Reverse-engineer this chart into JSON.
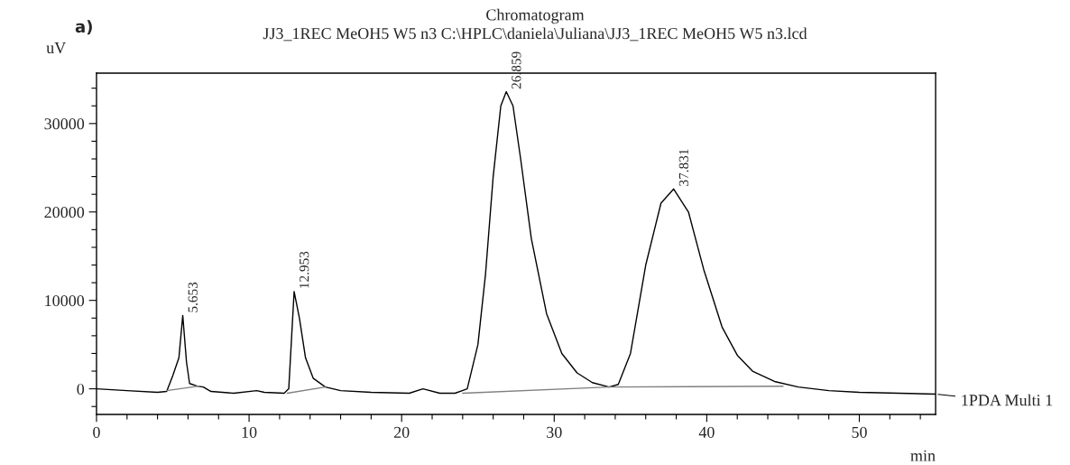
{
  "chart_data": {
    "type": "line",
    "title": "Chromatogram",
    "subtitle": "JJ3_1REC MeOH5 W5 n3 C:\\HPLC\\daniela\\Juliana\\JJ3_1REC MeOH5 W5 n3.lcd",
    "xlabel": "min",
    "ylabel": "uV",
    "xlim": [
      0,
      55
    ],
    "xticks": [
      0,
      10,
      20,
      30,
      40,
      50
    ],
    "ylim": [
      -2900,
      35700
    ],
    "yticks": [
      0,
      10000,
      20000,
      30000
    ],
    "grid": false,
    "legend": "right",
    "marker": "none",
    "line_style": "solid",
    "series": [
      {
        "name": "1PDA Multi 1",
        "color": "#000000",
        "x": [
          0,
          2,
          4,
          4.6,
          5.0,
          5.4,
          5.653,
          5.9,
          6.1,
          6.6,
          7.0,
          7.5,
          9,
          10.5,
          11,
          12.3,
          12.6,
          12.953,
          13.3,
          13.7,
          14.2,
          15,
          16,
          18,
          20.5,
          21.4,
          22.5,
          23.5,
          24.3,
          25,
          25.5,
          26,
          26.5,
          26.859,
          27.3,
          27.8,
          28.5,
          29.5,
          30.5,
          31.5,
          32.5,
          33.6,
          34.2,
          35,
          36,
          37,
          37.831,
          38.8,
          39.8,
          41,
          42,
          43,
          44.5,
          46,
          48,
          50,
          55
        ],
        "values": [
          0,
          -200,
          -400,
          -300,
          1500,
          3500,
          8300,
          3000,
          600,
          300,
          200,
          -300,
          -500,
          -200,
          -400,
          -500,
          0,
          11000,
          8000,
          3500,
          1200,
          200,
          -200,
          -400,
          -500,
          0,
          -500,
          -500,
          0,
          5000,
          13000,
          24000,
          32000,
          33600,
          32000,
          26000,
          17000,
          8500,
          4000,
          1800,
          700,
          200,
          500,
          4000,
          14000,
          21000,
          22600,
          20000,
          13500,
          7000,
          3800,
          2000,
          800,
          200,
          -200,
          -400,
          -600
        ]
      },
      {
        "color": "#808080",
        "x": [
          4.6,
          6.7,
          10,
          12.5,
          15,
          20,
          24,
          33.6,
          45
        ],
        "values": [
          -200,
          300,
          null,
          -500,
          200,
          null,
          -500,
          200,
          300
        ]
      }
    ],
    "annotations": [
      "a)",
      {
        "text": "5.653",
        "x": 5.653,
        "y": 8300
      },
      {
        "text": "12.953",
        "x": 12.953,
        "y": 11000
      },
      {
        "text": "26.859",
        "x": 26.859,
        "y": 33600
      },
      {
        "text": "37.831",
        "x": 37.831,
        "y": 22600
      }
    ]
  }
}
